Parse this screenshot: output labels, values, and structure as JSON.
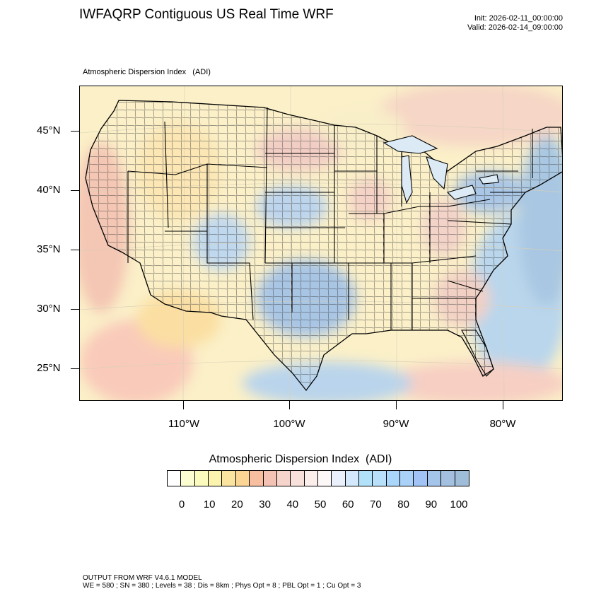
{
  "header": {
    "title": "IWFAQRP Contiguous US Real Time WRF",
    "init": "Init: 2026-02-11_00:00:00",
    "valid": "Valid: 2026-02-14_09:00:00",
    "subtitle": "Atmospheric Dispersion Index   (ADI)"
  },
  "map": {
    "lat_labels": [
      "45°N",
      "40°N",
      "35°N",
      "30°N",
      "25°N"
    ],
    "lon_labels": [
      "110°W",
      "100°W",
      "90°W",
      "80°W"
    ]
  },
  "colorbar": {
    "title": "Atmospheric Dispersion Index  (ADI)",
    "colors": [
      "#ffffff",
      "#fdfdd2",
      "#fbfbbe",
      "#fbf3ae",
      "#fbe4a0",
      "#fbd593",
      "#f8bea0",
      "#f4c1b5",
      "#f6d3cb",
      "#f8e1db",
      "#fbeeeb",
      "#fdf8f8",
      "#eaf1fd",
      "#d3e9fb",
      "#b1e2f9",
      "#b9e0fb",
      "#a9d6fa",
      "#aad1f7",
      "#a2c3f6",
      "#a4c4ea",
      "#a4c0e0",
      "#9fbcd8"
    ],
    "labels": [
      "0",
      "10",
      "20",
      "30",
      "40",
      "50",
      "60",
      "70",
      "80",
      "90",
      "100"
    ]
  },
  "footer": {
    "line1": "OUTPUT FROM WRF V4.6.1 MODEL",
    "line2": "WE = 580 ; SN = 380 ; Levels = 38 ; Dis = 8km ; Phys Opt = 8 ; PBL Opt = 1 ; Cu Opt = 3"
  }
}
